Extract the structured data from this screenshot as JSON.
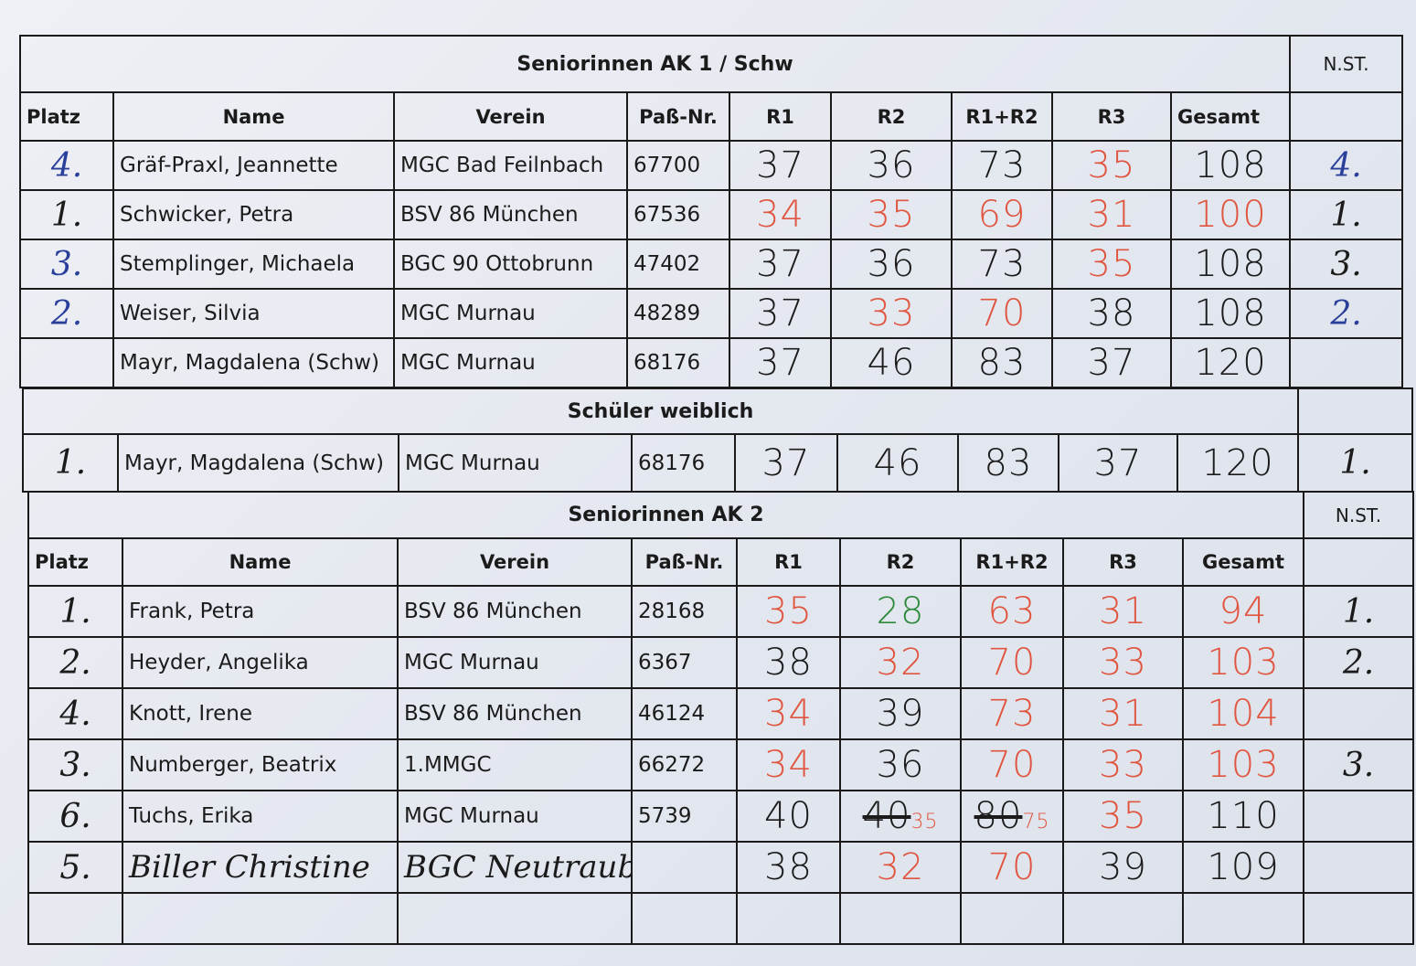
{
  "ink": {
    "black": "#1b1b1b",
    "blue": "#2a3f9a",
    "red": "#e0553f",
    "green": "#2c8a3a"
  },
  "columns": {
    "platz": "Platz",
    "name": "Name",
    "verein": "Verein",
    "pass": "Paß-Nr.",
    "r1": "R1",
    "r2": "R2",
    "r12": "R1+R2",
    "r3": "R3",
    "gesamt": "Gesamt",
    "nst": "N.ST."
  },
  "sections": [
    {
      "title": "Seniorinnen AK 1 / Schw",
      "nst_label": "N.ST.",
      "rows": [
        {
          "platz": {
            "v": "4.",
            "ink": "blue"
          },
          "name": "Gräf-Praxl, Jeannette",
          "verein": "MGC Bad Feilnbach",
          "pass": "67700",
          "r1": {
            "v": "37",
            "ink": "black"
          },
          "r2": {
            "v": "36",
            "ink": "black"
          },
          "r12": {
            "v": "73",
            "ink": "black"
          },
          "r3": {
            "v": "35",
            "ink": "red"
          },
          "gesamt": {
            "v": "108",
            "ink": "black"
          },
          "nst": {
            "v": "4.",
            "ink": "blue"
          }
        },
        {
          "platz": {
            "v": "1.",
            "ink": "black"
          },
          "name": "Schwicker, Petra",
          "verein": "BSV 86 München",
          "pass": "67536",
          "r1": {
            "v": "34",
            "ink": "red"
          },
          "r2": {
            "v": "35",
            "ink": "red"
          },
          "r12": {
            "v": "69",
            "ink": "red"
          },
          "r3": {
            "v": "31",
            "ink": "red"
          },
          "gesamt": {
            "v": "100",
            "ink": "red"
          },
          "nst": {
            "v": "1.",
            "ink": "black"
          }
        },
        {
          "platz": {
            "v": "3.",
            "ink": "blue"
          },
          "name": "Stemplinger, Michaela",
          "verein": "BGC 90 Ottobrunn",
          "pass": "47402",
          "r1": {
            "v": "37",
            "ink": "black"
          },
          "r2": {
            "v": "36",
            "ink": "black"
          },
          "r12": {
            "v": "73",
            "ink": "black"
          },
          "r3": {
            "v": "35",
            "ink": "red"
          },
          "gesamt": {
            "v": "108",
            "ink": "black"
          },
          "nst": {
            "v": "3.",
            "ink": "black"
          }
        },
        {
          "platz": {
            "v": "2.",
            "ink": "blue"
          },
          "name": "Weiser, Silvia",
          "verein": "MGC Murnau",
          "pass": "48289",
          "r1": {
            "v": "37",
            "ink": "black"
          },
          "r2": {
            "v": "33",
            "ink": "red"
          },
          "r12": {
            "v": "70",
            "ink": "red"
          },
          "r3": {
            "v": "38",
            "ink": "black"
          },
          "gesamt": {
            "v": "108",
            "ink": "black"
          },
          "nst": {
            "v": "2.",
            "ink": "blue"
          }
        },
        {
          "platz": {
            "v": "",
            "ink": "black"
          },
          "name": "Mayr, Magdalena (Schw)",
          "verein": "MGC Murnau",
          "pass": "68176",
          "r1": {
            "v": "37",
            "ink": "black"
          },
          "r2": {
            "v": "46",
            "ink": "black"
          },
          "r12": {
            "v": "83",
            "ink": "black"
          },
          "r3": {
            "v": "37",
            "ink": "black"
          },
          "gesamt": {
            "v": "120",
            "ink": "black"
          },
          "nst": {
            "v": "",
            "ink": "black"
          }
        }
      ]
    },
    {
      "title": "Schüler weiblich",
      "rows": [
        {
          "platz": {
            "v": "1.",
            "ink": "black"
          },
          "name": "Mayr, Magdalena (Schw)",
          "verein": "MGC Murnau",
          "pass": "68176",
          "r1": {
            "v": "37",
            "ink": "black"
          },
          "r2": {
            "v": "46",
            "ink": "black"
          },
          "r12": {
            "v": "83",
            "ink": "black"
          },
          "r3": {
            "v": "37",
            "ink": "black"
          },
          "gesamt": {
            "v": "120",
            "ink": "black"
          },
          "nst": {
            "v": "1.",
            "ink": "black"
          }
        }
      ]
    },
    {
      "title": "Seniorinnen AK 2",
      "nst_label": "N.ST.",
      "rows": [
        {
          "platz": {
            "v": "1.",
            "ink": "black"
          },
          "name": "Frank, Petra",
          "verein": "BSV 86 München",
          "pass": "28168",
          "r1": {
            "v": "35",
            "ink": "red"
          },
          "r2": {
            "v": "28",
            "ink": "green"
          },
          "r12": {
            "v": "63",
            "ink": "red"
          },
          "r3": {
            "v": "31",
            "ink": "red"
          },
          "gesamt": {
            "v": "94",
            "ink": "red"
          },
          "nst": {
            "v": "1.",
            "ink": "black"
          }
        },
        {
          "platz": {
            "v": "2.",
            "ink": "black"
          },
          "name": "Heyder, Angelika",
          "verein": "MGC Murnau",
          "pass": "6367",
          "r1": {
            "v": "38",
            "ink": "black"
          },
          "r2": {
            "v": "32",
            "ink": "red"
          },
          "r12": {
            "v": "70",
            "ink": "red"
          },
          "r3": {
            "v": "33",
            "ink": "red"
          },
          "gesamt": {
            "v": "103",
            "ink": "red"
          },
          "nst": {
            "v": "2.",
            "ink": "black"
          }
        },
        {
          "platz": {
            "v": "4.",
            "ink": "black"
          },
          "name": "Knott, Irene",
          "verein": "BSV 86 München",
          "pass": "46124",
          "r1": {
            "v": "34",
            "ink": "red"
          },
          "r2": {
            "v": "39",
            "ink": "black"
          },
          "r12": {
            "v": "73",
            "ink": "red"
          },
          "r3": {
            "v": "31",
            "ink": "red"
          },
          "gesamt": {
            "v": "104",
            "ink": "red"
          },
          "nst": {
            "v": "",
            "ink": "black"
          }
        },
        {
          "platz": {
            "v": "3.",
            "ink": "black"
          },
          "name": "Numberger, Beatrix",
          "verein": "1.MMGC",
          "pass": "66272",
          "r1": {
            "v": "34",
            "ink": "red"
          },
          "r2": {
            "v": "36",
            "ink": "black"
          },
          "r12": {
            "v": "70",
            "ink": "red"
          },
          "r3": {
            "v": "33",
            "ink": "red"
          },
          "gesamt": {
            "v": "103",
            "ink": "red"
          },
          "nst": {
            "v": "3.",
            "ink": "black"
          }
        },
        {
          "platz": {
            "v": "6.",
            "ink": "black"
          },
          "name": "Tuchs, Erika",
          "verein": "MGC Murnau",
          "pass": "5739",
          "r1": {
            "v": "40",
            "ink": "black"
          },
          "r2": {
            "v": "40",
            "struck": true,
            "corr": "35",
            "ink": "black"
          },
          "r12": {
            "v": "80",
            "struck": true,
            "corr": "75",
            "ink": "black"
          },
          "r3": {
            "v": "35",
            "ink": "red"
          },
          "gesamt": {
            "v": "110",
            "ink": "black"
          },
          "nst": {
            "v": "",
            "ink": "black"
          }
        },
        {
          "platz": {
            "v": "5.",
            "ink": "black"
          },
          "name": "Biller Christine",
          "name_handwritten": true,
          "verein": "BGC Neutraubl.",
          "pass": "",
          "r1": {
            "v": "38",
            "ink": "black"
          },
          "r2": {
            "v": "32",
            "ink": "red"
          },
          "r12": {
            "v": "70",
            "ink": "red"
          },
          "r3": {
            "v": "39",
            "ink": "black"
          },
          "gesamt": {
            "v": "109",
            "ink": "black"
          },
          "nst": {
            "v": "",
            "ink": "black"
          }
        },
        {
          "platz": {
            "v": "",
            "ink": "black"
          },
          "name": "",
          "verein": "",
          "pass": "",
          "r1": {
            "v": "",
            "ink": "black"
          },
          "r2": {
            "v": "",
            "ink": "black"
          },
          "r12": {
            "v": "",
            "ink": "black"
          },
          "r3": {
            "v": "",
            "ink": "black"
          },
          "gesamt": {
            "v": "",
            "ink": "black"
          },
          "nst": {
            "v": "",
            "ink": "black"
          }
        }
      ]
    }
  ]
}
